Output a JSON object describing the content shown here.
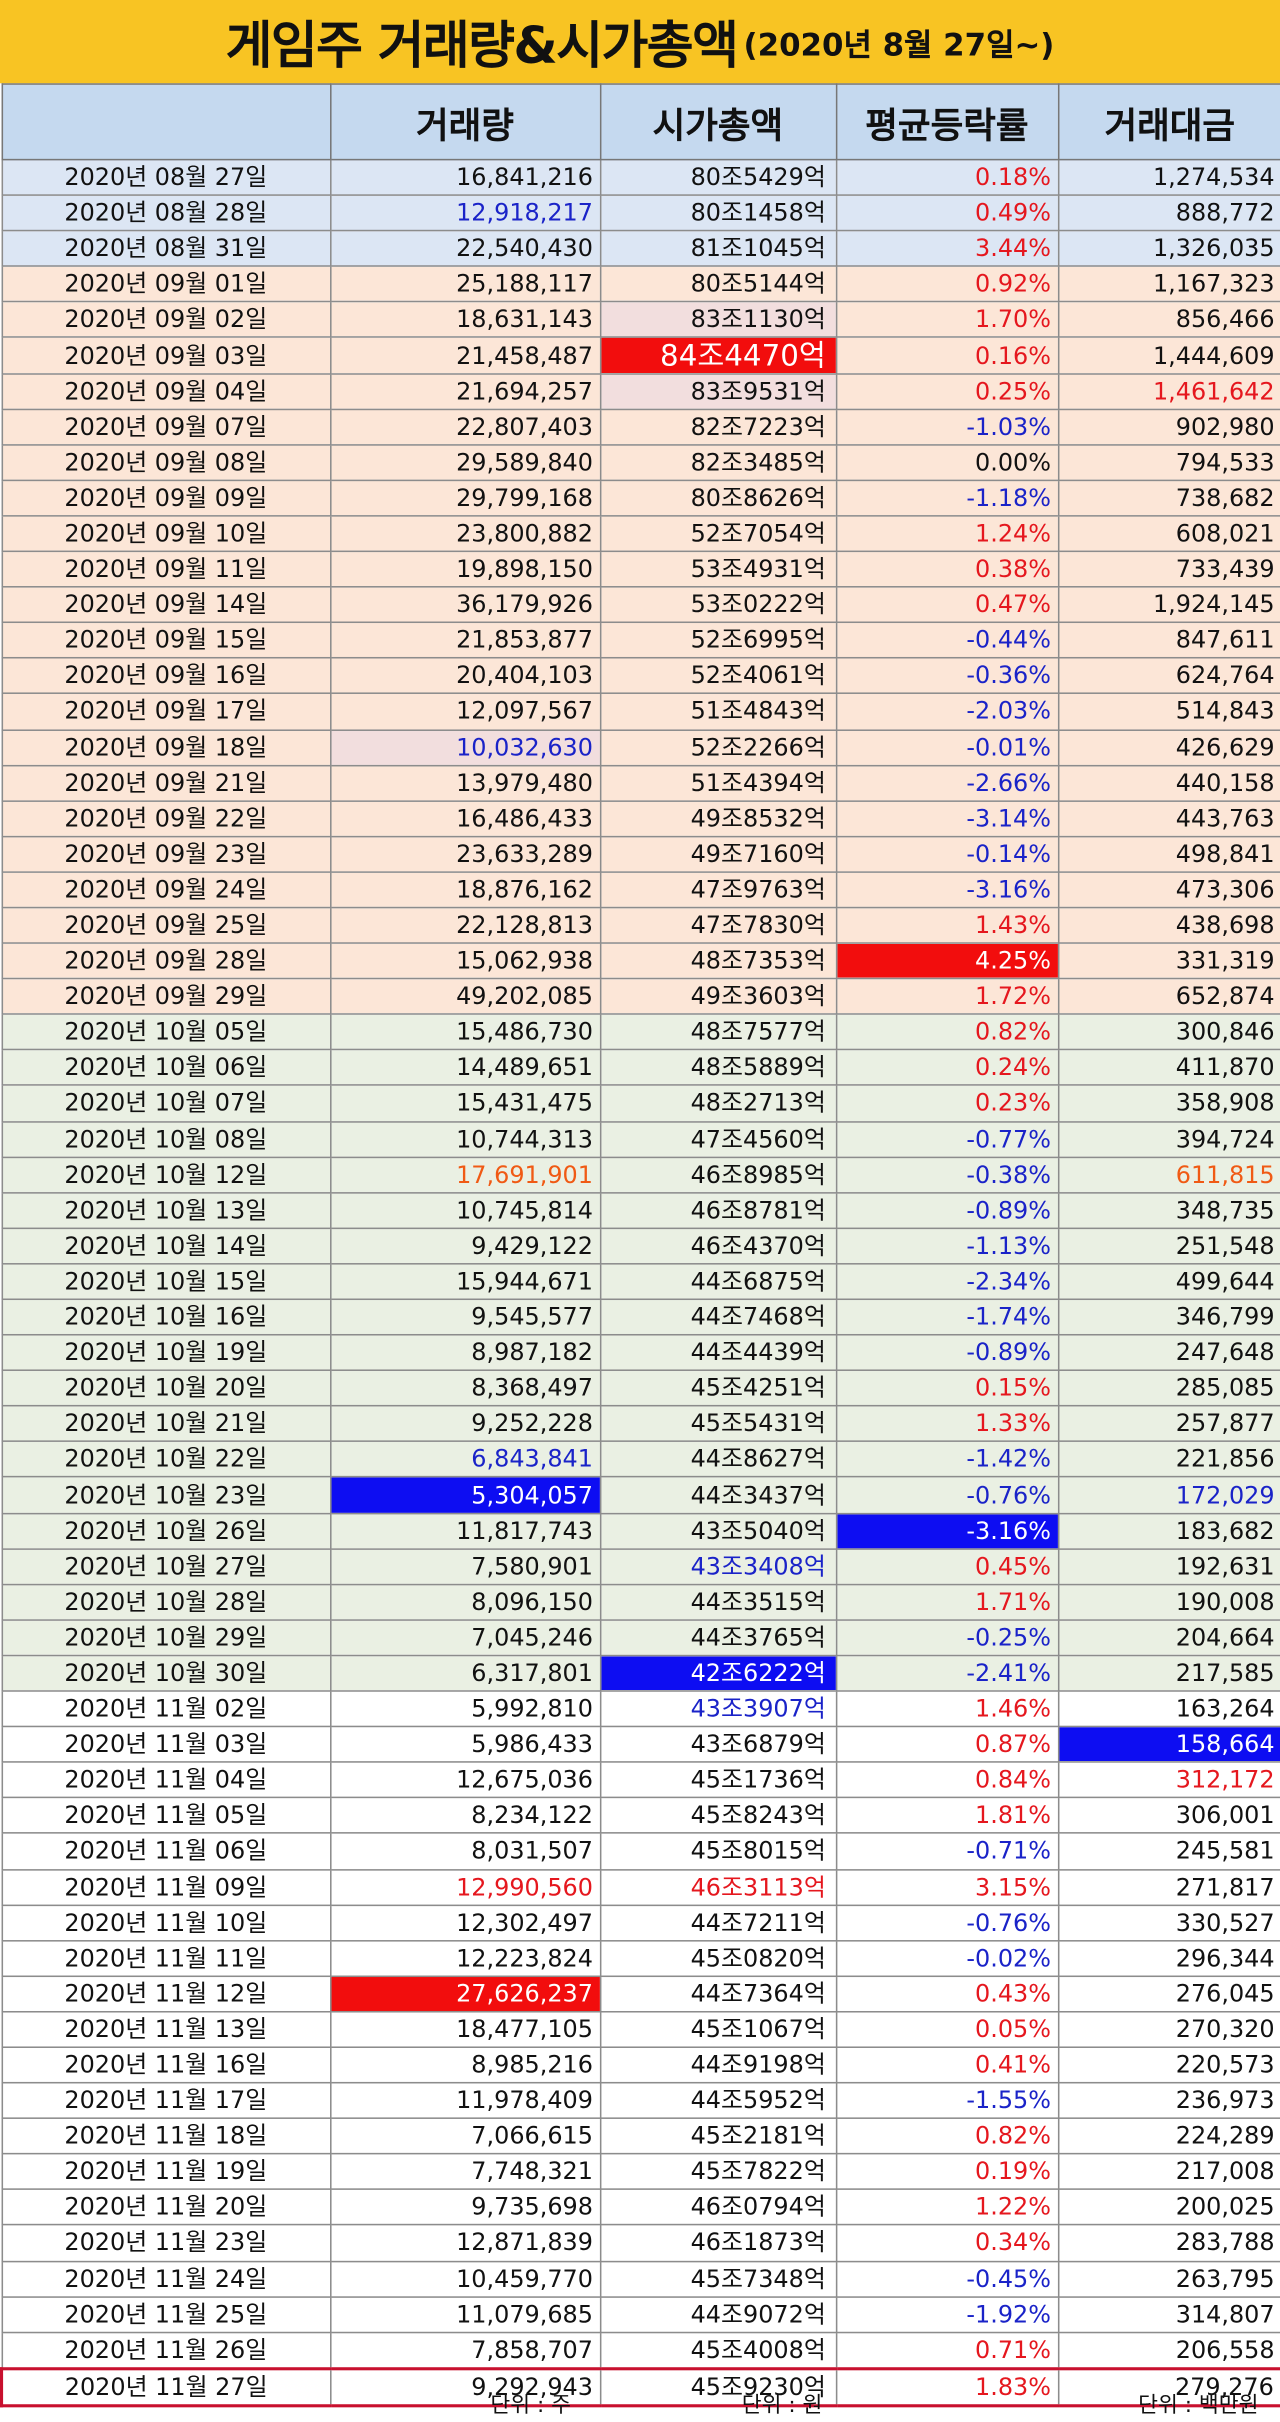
{
  "title": {
    "main": "게임주 거래량&시가총액",
    "sub": "(2020년 8월 27일~)"
  },
  "headers": [
    "",
    "거래량",
    "시가총액",
    "평균등락률",
    "거래대금"
  ],
  "units": {
    "volume": "단위 : 주",
    "cap": "단위 : 원",
    "amount": "단위 : 백만원"
  },
  "rows": [
    {
      "date": "2020년 08월 27일",
      "volume": "16,841,216",
      "cap": "80조5429억",
      "rate": "0.18%",
      "amount": "1,274,534",
      "g": "blue"
    },
    {
      "date": "2020년 08월 28일",
      "volume": "12,918,217",
      "cap": "80조1458억",
      "rate": "0.49%",
      "amount": "888,772",
      "g": "blue",
      "vol_c": "t-blue"
    },
    {
      "date": "2020년 08월 31일",
      "volume": "22,540,430",
      "cap": "81조1045억",
      "rate": "3.44%",
      "amount": "1,326,035",
      "g": "blue"
    },
    {
      "date": "2020년 09월 01일",
      "volume": "25,188,117",
      "cap": "80조5144억",
      "rate": "0.92%",
      "amount": "1,167,323",
      "g": "orange"
    },
    {
      "date": "2020년 09월 02일",
      "volume": "18,631,143",
      "cap": "83조1130억",
      "rate": "1.70%",
      "amount": "856,466",
      "g": "orange",
      "cap_c": "pink"
    },
    {
      "date": "2020년 09월 03일",
      "volume": "21,458,487",
      "cap": "84조4470억",
      "rate": "0.16%",
      "amount": "1,444,609",
      "g": "orange",
      "cap_c": "hl-red big"
    },
    {
      "date": "2020년 09월 04일",
      "volume": "21,694,257",
      "cap": "83조9531억",
      "rate": "0.25%",
      "amount": "1,461,642",
      "g": "orange",
      "cap_c": "pink",
      "amt_c": "t-red"
    },
    {
      "date": "2020년 09월 07일",
      "volume": "22,807,403",
      "cap": "82조7223억",
      "rate": "-1.03%",
      "amount": "902,980",
      "g": "orange"
    },
    {
      "date": "2020년 09월 08일",
      "volume": "29,589,840",
      "cap": "82조3485억",
      "rate": "0.00%",
      "amount": "794,533",
      "g": "orange"
    },
    {
      "date": "2020년 09월 09일",
      "volume": "29,799,168",
      "cap": "80조8626억",
      "rate": "-1.18%",
      "amount": "738,682",
      "g": "orange",
      "dashed": true
    },
    {
      "date": "2020년 09월 10일",
      "volume": "23,800,882",
      "cap": "52조7054억",
      "rate": "1.24%",
      "amount": "608,021",
      "g": "orange"
    },
    {
      "date": "2020년 09월 11일",
      "volume": "19,898,150",
      "cap": "53조4931억",
      "rate": "0.38%",
      "amount": "733,439",
      "g": "orange"
    },
    {
      "date": "2020년 09월 14일",
      "volume": "36,179,926",
      "cap": "53조0222억",
      "rate": "0.47%",
      "amount": "1,924,145",
      "g": "orange"
    },
    {
      "date": "2020년 09월 15일",
      "volume": "21,853,877",
      "cap": "52조6995억",
      "rate": "-0.44%",
      "amount": "847,611",
      "g": "orange"
    },
    {
      "date": "2020년 09월 16일",
      "volume": "20,404,103",
      "cap": "52조4061억",
      "rate": "-0.36%",
      "amount": "624,764",
      "g": "orange"
    },
    {
      "date": "2020년 09월 17일",
      "volume": "12,097,567",
      "cap": "51조4843억",
      "rate": "-2.03%",
      "amount": "514,843",
      "g": "orange"
    },
    {
      "date": "2020년 09월 18일",
      "volume": "10,032,630",
      "cap": "52조2266억",
      "rate": "-0.01%",
      "amount": "426,629",
      "g": "orange",
      "vol_c": "t-blue pink"
    },
    {
      "date": "2020년 09월 21일",
      "volume": "13,979,480",
      "cap": "51조4394억",
      "rate": "-2.66%",
      "amount": "440,158",
      "g": "orange"
    },
    {
      "date": "2020년 09월 22일",
      "volume": "16,486,433",
      "cap": "49조8532억",
      "rate": "-3.14%",
      "amount": "443,763",
      "g": "orange"
    },
    {
      "date": "2020년 09월 23일",
      "volume": "23,633,289",
      "cap": "49조7160억",
      "rate": "-0.14%",
      "amount": "498,841",
      "g": "orange"
    },
    {
      "date": "2020년 09월 24일",
      "volume": "18,876,162",
      "cap": "47조9763억",
      "rate": "-3.16%",
      "amount": "473,306",
      "g": "orange"
    },
    {
      "date": "2020년 09월 25일",
      "volume": "22,128,813",
      "cap": "47조7830억",
      "rate": "1.43%",
      "amount": "438,698",
      "g": "orange"
    },
    {
      "date": "2020년 09월 28일",
      "volume": "15,062,938",
      "cap": "48조7353억",
      "rate": "4.25%",
      "amount": "331,319",
      "g": "orange",
      "rate_c": "hl-red"
    },
    {
      "date": "2020년 09월 29일",
      "volume": "49,202,085",
      "cap": "49조3603억",
      "rate": "1.72%",
      "amount": "652,874",
      "g": "orange"
    },
    {
      "date": "2020년 10월 05일",
      "volume": "15,486,730",
      "cap": "48조7577억",
      "rate": "0.82%",
      "amount": "300,846",
      "g": "green"
    },
    {
      "date": "2020년 10월 06일",
      "volume": "14,489,651",
      "cap": "48조5889억",
      "rate": "0.24%",
      "amount": "411,870",
      "g": "green"
    },
    {
      "date": "2020년 10월 07일",
      "volume": "15,431,475",
      "cap": "48조2713억",
      "rate": "0.23%",
      "amount": "358,908",
      "g": "green"
    },
    {
      "date": "2020년 10월 08일",
      "volume": "10,744,313",
      "cap": "47조4560억",
      "rate": "-0.77%",
      "amount": "394,724",
      "g": "green"
    },
    {
      "date": "2020년 10월 12일",
      "volume": "17,691,901",
      "cap": "46조8985억",
      "rate": "-0.38%",
      "amount": "611,815",
      "g": "green",
      "vol_c": "t-orange",
      "amt_c": "t-orange"
    },
    {
      "date": "2020년 10월 13일",
      "volume": "10,745,814",
      "cap": "46조8781억",
      "rate": "-0.89%",
      "amount": "348,735",
      "g": "green"
    },
    {
      "date": "2020년 10월 14일",
      "volume": "9,429,122",
      "cap": "46조4370억",
      "rate": "-1.13%",
      "amount": "251,548",
      "g": "green"
    },
    {
      "date": "2020년 10월 15일",
      "volume": "15,944,671",
      "cap": "44조6875억",
      "rate": "-2.34%",
      "amount": "499,644",
      "g": "green"
    },
    {
      "date": "2020년 10월 16일",
      "volume": "9,545,577",
      "cap": "44조7468억",
      "rate": "-1.74%",
      "amount": "346,799",
      "g": "green"
    },
    {
      "date": "2020년 10월 19일",
      "volume": "8,987,182",
      "cap": "44조4439억",
      "rate": "-0.89%",
      "amount": "247,648",
      "g": "green"
    },
    {
      "date": "2020년 10월 20일",
      "volume": "8,368,497",
      "cap": "45조4251억",
      "rate": "0.15%",
      "amount": "285,085",
      "g": "green"
    },
    {
      "date": "2020년 10월 21일",
      "volume": "9,252,228",
      "cap": "45조5431억",
      "rate": "1.33%",
      "amount": "257,877",
      "g": "green"
    },
    {
      "date": "2020년 10월 22일",
      "volume": "6,843,841",
      "cap": "44조8627억",
      "rate": "-1.42%",
      "amount": "221,856",
      "g": "green",
      "vol_c": "t-blue"
    },
    {
      "date": "2020년 10월 23일",
      "volume": "5,304,057",
      "cap": "44조3437억",
      "rate": "-0.76%",
      "amount": "172,029",
      "g": "green",
      "vol_c": "hl-blue",
      "amt_c": "t-blue"
    },
    {
      "date": "2020년 10월 26일",
      "volume": "11,817,743",
      "cap": "43조5040억",
      "rate": "-3.16%",
      "amount": "183,682",
      "g": "green",
      "rate_c": "hl-blue"
    },
    {
      "date": "2020년 10월 27일",
      "volume": "7,580,901",
      "cap": "43조3408억",
      "rate": "0.45%",
      "amount": "192,631",
      "g": "green",
      "cap_c": "t-blue"
    },
    {
      "date": "2020년 10월 28일",
      "volume": "8,096,150",
      "cap": "44조3515억",
      "rate": "1.71%",
      "amount": "190,008",
      "g": "green"
    },
    {
      "date": "2020년 10월 29일",
      "volume": "7,045,246",
      "cap": "44조3765억",
      "rate": "-0.25%",
      "amount": "204,664",
      "g": "green"
    },
    {
      "date": "2020년 10월 30일",
      "volume": "6,317,801",
      "cap": "42조6222억",
      "rate": "-2.41%",
      "amount": "217,585",
      "g": "green",
      "cap_c": "hl-blue"
    },
    {
      "date": "2020년 11월 02일",
      "volume": "5,992,810",
      "cap": "43조3907억",
      "rate": "1.46%",
      "amount": "163,264",
      "g": "white",
      "cap_c": "t-blue"
    },
    {
      "date": "2020년 11월 03일",
      "volume": "5,986,433",
      "cap": "43조6879억",
      "rate": "0.87%",
      "amount": "158,664",
      "g": "white",
      "amt_c": "hl-blue"
    },
    {
      "date": "2020년 11월 04일",
      "volume": "12,675,036",
      "cap": "45조1736억",
      "rate": "0.84%",
      "amount": "312,172",
      "g": "white",
      "amt_c": "t-red"
    },
    {
      "date": "2020년 11월 05일",
      "volume": "8,234,122",
      "cap": "45조8243억",
      "rate": "1.81%",
      "amount": "306,001",
      "g": "white"
    },
    {
      "date": "2020년 11월 06일",
      "volume": "8,031,507",
      "cap": "45조8015억",
      "rate": "-0.71%",
      "amount": "245,581",
      "g": "white"
    },
    {
      "date": "2020년 11월 09일",
      "volume": "12,990,560",
      "cap": "46조3113억",
      "rate": "3.15%",
      "amount": "271,817",
      "g": "white",
      "vol_c": "t-red",
      "cap_c": "t-red"
    },
    {
      "date": "2020년 11월 10일",
      "volume": "12,302,497",
      "cap": "44조7211억",
      "rate": "-0.76%",
      "amount": "330,527",
      "g": "white"
    },
    {
      "date": "2020년 11월 11일",
      "volume": "12,223,824",
      "cap": "45조0820억",
      "rate": "-0.02%",
      "amount": "296,344",
      "g": "white"
    },
    {
      "date": "2020년 11월 12일",
      "volume": "27,626,237",
      "cap": "44조7364억",
      "rate": "0.43%",
      "amount": "276,045",
      "g": "white",
      "vol_c": "hl-red"
    },
    {
      "date": "2020년 11월 13일",
      "volume": "18,477,105",
      "cap": "45조1067억",
      "rate": "0.05%",
      "amount": "270,320",
      "g": "white"
    },
    {
      "date": "2020년 11월 16일",
      "volume": "8,985,216",
      "cap": "44조9198억",
      "rate": "0.41%",
      "amount": "220,573",
      "g": "white"
    },
    {
      "date": "2020년 11월 17일",
      "volume": "11,978,409",
      "cap": "44조5952억",
      "rate": "-1.55%",
      "amount": "236,973",
      "g": "white"
    },
    {
      "date": "2020년 11월 18일",
      "volume": "7,066,615",
      "cap": "45조2181억",
      "rate": "0.82%",
      "amount": "224,289",
      "g": "white"
    },
    {
      "date": "2020년 11월 19일",
      "volume": "7,748,321",
      "cap": "45조7822억",
      "rate": "0.19%",
      "amount": "217,008",
      "g": "white"
    },
    {
      "date": "2020년 11월 20일",
      "volume": "9,735,698",
      "cap": "46조0794억",
      "rate": "1.22%",
      "amount": "200,025",
      "g": "white"
    },
    {
      "date": "2020년 11월 23일",
      "volume": "12,871,839",
      "cap": "46조1873억",
      "rate": "0.34%",
      "amount": "283,788",
      "g": "white"
    },
    {
      "date": "2020년 11월 24일",
      "volume": "10,459,770",
      "cap": "45조7348억",
      "rate": "-0.45%",
      "amount": "263,795",
      "g": "white"
    },
    {
      "date": "2020년 11월 25일",
      "volume": "11,079,685",
      "cap": "44조9072억",
      "rate": "-1.92%",
      "amount": "314,807",
      "g": "white"
    },
    {
      "date": "2020년 11월 26일",
      "volume": "7,858,707",
      "cap": "45조4008억",
      "rate": "0.71%",
      "amount": "206,558",
      "g": "white"
    },
    {
      "date": "2020년 11월 27일",
      "volume": "9,292,943",
      "cap": "45조9230억",
      "rate": "1.83%",
      "amount": "279,276",
      "g": "white",
      "boxed": true
    }
  ]
}
